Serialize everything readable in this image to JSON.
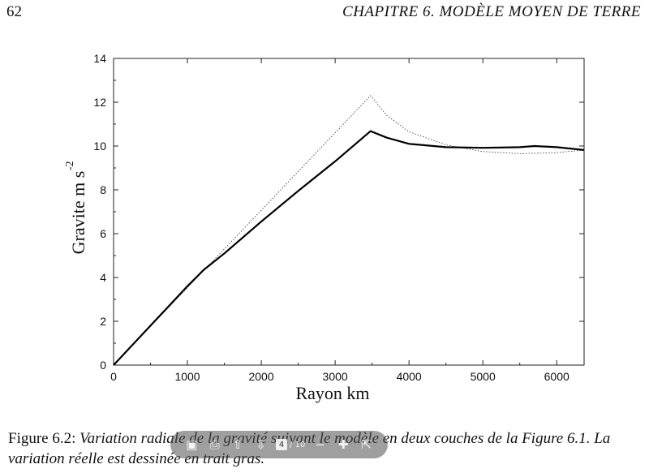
{
  "header": {
    "page_number": "62",
    "running_title": "CHAPITRE 6.  MODÈLE MOYEN DE TERRE"
  },
  "chart_data": {
    "type": "line",
    "xlabel": "Rayon km",
    "ylabel": "Gravite m s",
    "ylabel_superscript": "-2",
    "xlim": [
      0,
      6371
    ],
    "ylim": [
      0,
      14
    ],
    "x_ticks": [
      0,
      1000,
      2000,
      3000,
      4000,
      5000,
      6000
    ],
    "y_ticks": [
      0,
      2,
      4,
      6,
      8,
      10,
      12,
      14
    ],
    "grid": false,
    "legend": "none",
    "series": [
      {
        "style": "dotted",
        "x": [
          0,
          3480,
          3700,
          4000,
          4500,
          5000,
          5500,
          6000,
          6371
        ],
        "y": [
          0,
          12.3,
          11.4,
          10.65,
          10.05,
          9.75,
          9.65,
          9.7,
          9.82
        ]
      },
      {
        "style": "bold",
        "x": [
          0,
          500,
          1000,
          1220,
          1500,
          2000,
          2500,
          3000,
          3480,
          3700,
          4000,
          4500,
          5000,
          5500,
          5700,
          6000,
          6371
        ],
        "y": [
          0,
          1.8,
          3.6,
          4.35,
          5.1,
          6.55,
          7.95,
          9.3,
          10.68,
          10.38,
          10.1,
          9.95,
          9.92,
          9.95,
          10.0,
          9.95,
          9.82
        ]
      }
    ]
  },
  "caption": {
    "label": "Figure 6.2:",
    "text": "Variation radiale de la gravité suivant le modèle en deux couches de la Figure 6.1. La variation réelle est dessinée en trait gras."
  },
  "pdf_toolbar": {
    "current_page": "4",
    "page_count": "/ 10"
  }
}
